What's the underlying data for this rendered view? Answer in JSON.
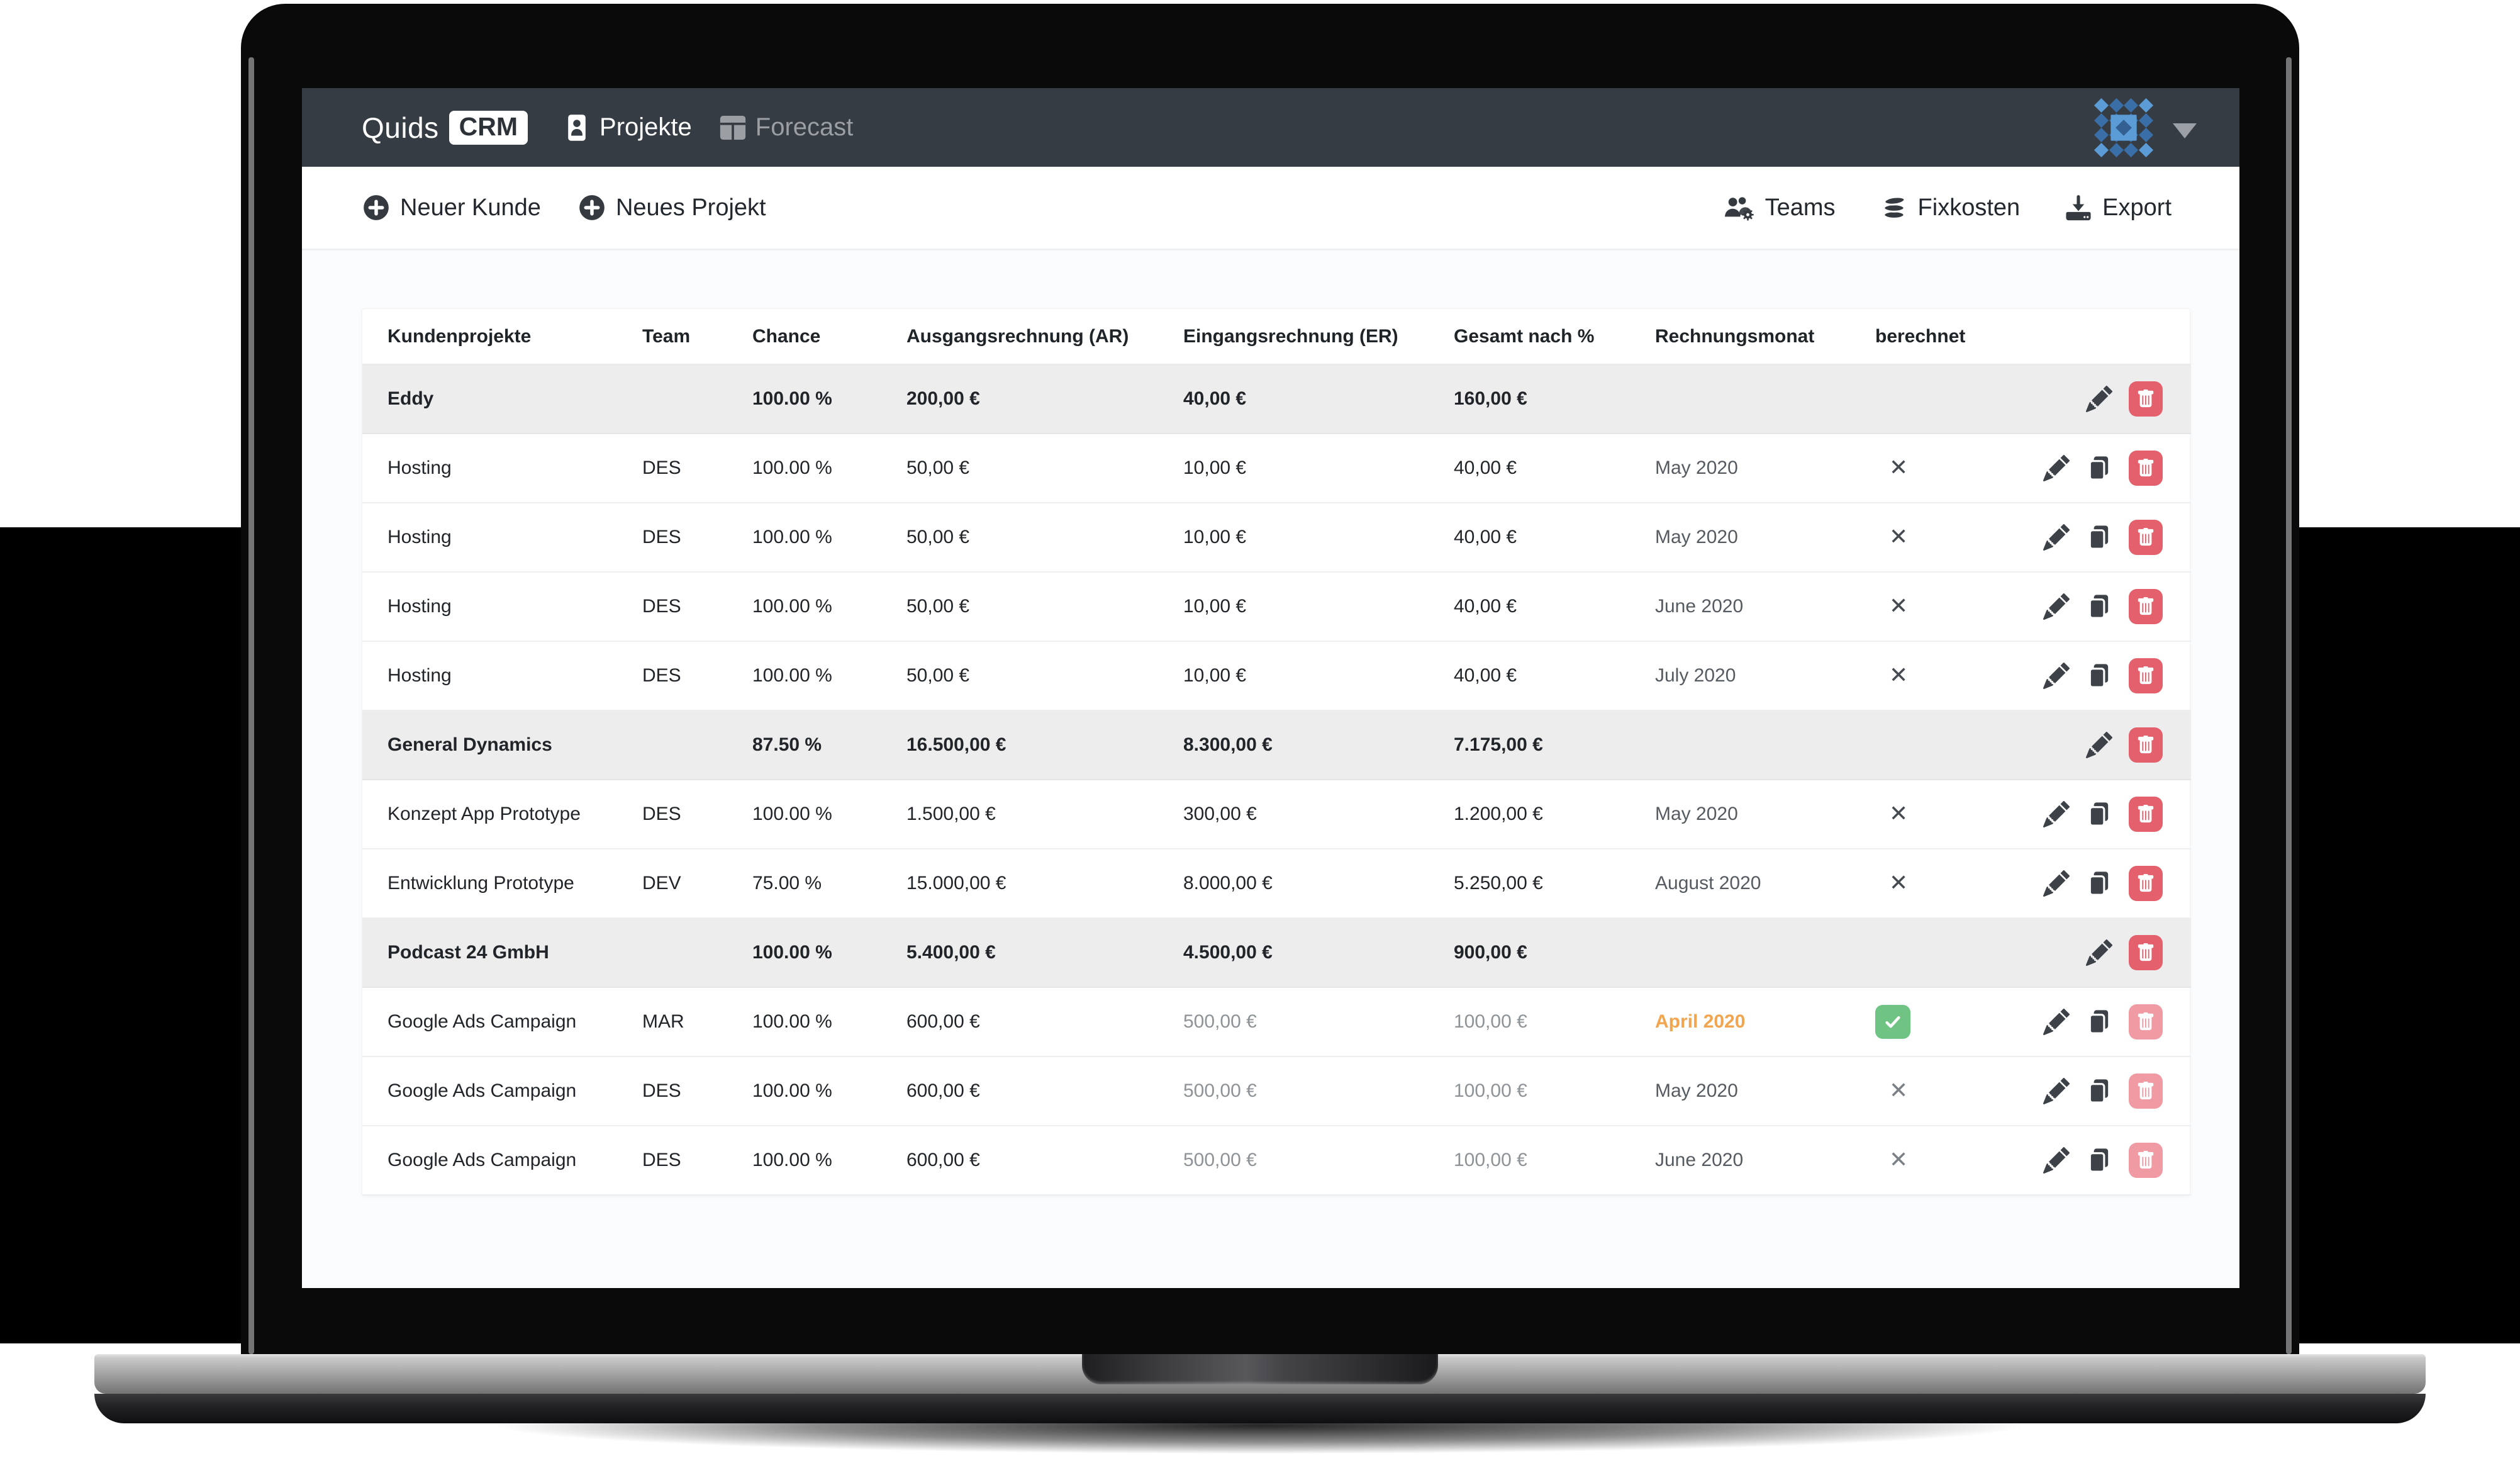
{
  "colors": {
    "navbar_bg": "#363c43",
    "nav_inactive": "#9b9fa4",
    "delete_red": "#e4606d",
    "delete_red_light": "#f09aa4",
    "check_green": "#6fc483",
    "month_orange": "#f2a44f",
    "group_row_bg": "#ededee",
    "logo_blue_light": "#5b9cd6",
    "logo_blue_dark": "#3a6ea6"
  },
  "navbar": {
    "brand": {
      "name": "Quids",
      "badge": "CRM"
    },
    "items": [
      {
        "label": "Projekte",
        "icon": "person-card-icon",
        "active": true
      },
      {
        "label": "Forecast",
        "icon": "table-grid-icon",
        "active": false
      }
    ],
    "account": {
      "logo_icon": "diamond-grid-logo",
      "caret_icon": "chevron-down-icon"
    }
  },
  "toolbar": {
    "left": [
      {
        "label": "Neuer Kunde",
        "icon": "plus-circle-icon"
      },
      {
        "label": "Neues Projekt",
        "icon": "plus-circle-icon"
      }
    ],
    "right": [
      {
        "label": "Teams",
        "icon": "users-gear-icon"
      },
      {
        "label": "Fixkosten",
        "icon": "coins-icon"
      },
      {
        "label": "Export",
        "icon": "download-icon"
      }
    ]
  },
  "table": {
    "columns": [
      "Kundenprojekte",
      "Team",
      "Chance",
      "Ausgangsrechnung (AR)",
      "Eingangsrechnung (ER)",
      "Gesamt nach %",
      "Rechnungsmonat",
      "berechnet"
    ],
    "x_mark": "✕",
    "rows": [
      {
        "type": "group",
        "name": "Eddy",
        "team": "",
        "chance": "100.00 %",
        "ar": "200,00 €",
        "er": "40,00 €",
        "gesamt": "160,00 €",
        "monat": "",
        "monat_highlight": false,
        "berechnet": "none",
        "values_muted": false,
        "actions": [
          "edit",
          "delete"
        ],
        "delete_variant": "normal"
      },
      {
        "type": "project",
        "name": "Hosting",
        "team": "DES",
        "chance": "100.00 %",
        "ar": "50,00 €",
        "er": "10,00 €",
        "gesamt": "40,00 €",
        "monat": "May 2020",
        "monat_highlight": false,
        "berechnet": "x",
        "values_muted": false,
        "actions": [
          "edit",
          "copy",
          "delete"
        ],
        "delete_variant": "normal"
      },
      {
        "type": "project",
        "name": "Hosting",
        "team": "DES",
        "chance": "100.00 %",
        "ar": "50,00 €",
        "er": "10,00 €",
        "gesamt": "40,00 €",
        "monat": "May 2020",
        "monat_highlight": false,
        "berechnet": "x",
        "values_muted": false,
        "actions": [
          "edit",
          "copy",
          "delete"
        ],
        "delete_variant": "normal"
      },
      {
        "type": "project",
        "name": "Hosting",
        "team": "DES",
        "chance": "100.00 %",
        "ar": "50,00 €",
        "er": "10,00 €",
        "gesamt": "40,00 €",
        "monat": "June 2020",
        "monat_highlight": false,
        "berechnet": "x",
        "values_muted": false,
        "actions": [
          "edit",
          "copy",
          "delete"
        ],
        "delete_variant": "normal"
      },
      {
        "type": "project",
        "name": "Hosting",
        "team": "DES",
        "chance": "100.00 %",
        "ar": "50,00 €",
        "er": "10,00 €",
        "gesamt": "40,00 €",
        "monat": "July 2020",
        "monat_highlight": false,
        "berechnet": "x",
        "values_muted": false,
        "actions": [
          "edit",
          "copy",
          "delete"
        ],
        "delete_variant": "normal"
      },
      {
        "type": "group",
        "name": "General Dynamics",
        "team": "",
        "chance": "87.50 %",
        "ar": "16.500,00 €",
        "er": "8.300,00 €",
        "gesamt": "7.175,00 €",
        "monat": "",
        "monat_highlight": false,
        "berechnet": "none",
        "values_muted": false,
        "actions": [
          "edit",
          "delete"
        ],
        "delete_variant": "normal"
      },
      {
        "type": "project",
        "name": "Konzept App Prototype",
        "team": "DES",
        "chance": "100.00 %",
        "ar": "1.500,00 €",
        "er": "300,00 €",
        "gesamt": "1.200,00 €",
        "monat": "May 2020",
        "monat_highlight": false,
        "berechnet": "x",
        "values_muted": false,
        "actions": [
          "edit",
          "copy",
          "delete"
        ],
        "delete_variant": "normal"
      },
      {
        "type": "project",
        "name": "Entwicklung Prototype",
        "team": "DEV",
        "chance": "75.00 %",
        "ar": "15.000,00 €",
        "er": "8.000,00 €",
        "gesamt": "5.250,00 €",
        "monat": "August 2020",
        "monat_highlight": false,
        "berechnet": "x",
        "values_muted": false,
        "actions": [
          "edit",
          "copy",
          "delete"
        ],
        "delete_variant": "normal"
      },
      {
        "type": "group",
        "name": "Podcast 24 GmbH",
        "team": "",
        "chance": "100.00 %",
        "ar": "5.400,00 €",
        "er": "4.500,00 €",
        "gesamt": "900,00 €",
        "monat": "",
        "monat_highlight": false,
        "berechnet": "none",
        "values_muted": false,
        "actions": [
          "edit",
          "delete"
        ],
        "delete_variant": "normal"
      },
      {
        "type": "project",
        "name": "Google Ads Campaign",
        "team": "MAR",
        "chance": "100.00 %",
        "ar": "600,00 €",
        "er": "500,00 €",
        "gesamt": "100,00 €",
        "monat": "April 2020",
        "monat_highlight": true,
        "berechnet": "check",
        "values_muted": true,
        "actions": [
          "edit",
          "copy",
          "delete"
        ],
        "delete_variant": "light"
      },
      {
        "type": "project",
        "name": "Google Ads Campaign",
        "team": "DES",
        "chance": "100.00 %",
        "ar": "600,00 €",
        "er": "500,00 €",
        "gesamt": "100,00 €",
        "monat": "May 2020",
        "monat_highlight": false,
        "berechnet": "x-muted",
        "values_muted": true,
        "actions": [
          "edit",
          "copy",
          "delete"
        ],
        "delete_variant": "light"
      },
      {
        "type": "project",
        "name": "Google Ads Campaign",
        "team": "DES",
        "chance": "100.00 %",
        "ar": "600,00 €",
        "er": "500,00 €",
        "gesamt": "100,00 €",
        "monat": "June 2020",
        "monat_highlight": false,
        "berechnet": "x-muted",
        "values_muted": true,
        "actions": [
          "edit",
          "copy",
          "delete"
        ],
        "delete_variant": "light"
      }
    ]
  }
}
